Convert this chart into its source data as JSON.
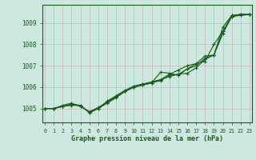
{
  "title": "Graphe pression niveau de la mer (hPa)",
  "bg_color": "#cce8e0",
  "grid_color": "#c8b8b8",
  "line_color": "#1a5c1a",
  "marker_color": "#1a5c1a",
  "xlim": [
    -0.3,
    23.3
  ],
  "ylim": [
    1004.35,
    1009.85
  ],
  "yticks": [
    1005,
    1006,
    1007,
    1008,
    1009
  ],
  "xticks": [
    0,
    1,
    2,
    3,
    4,
    5,
    6,
    7,
    8,
    9,
    10,
    11,
    12,
    13,
    14,
    15,
    16,
    17,
    18,
    19,
    20,
    21,
    22,
    23
  ],
  "series": [
    [
      1005.0,
      1005.0,
      1005.1,
      1005.15,
      1005.15,
      1004.8,
      1005.0,
      1005.35,
      1005.6,
      1005.85,
      1006.05,
      1006.15,
      1006.25,
      1006.35,
      1006.5,
      1006.6,
      1006.65,
      1006.9,
      1007.3,
      1007.5,
      1008.5,
      1009.3,
      1009.4,
      1009.4
    ],
    [
      1005.0,
      1005.0,
      1005.1,
      1005.2,
      1005.15,
      1004.8,
      1005.0,
      1005.3,
      1005.55,
      1005.8,
      1006.0,
      1006.1,
      1006.2,
      1006.3,
      1006.55,
      1006.6,
      1006.85,
      1007.0,
      1007.35,
      1007.5,
      1008.8,
      1009.35,
      1009.4,
      1009.4
    ],
    [
      1005.0,
      1005.0,
      1005.1,
      1005.2,
      1005.1,
      1004.85,
      1005.0,
      1005.25,
      1005.5,
      1005.8,
      1006.0,
      1006.1,
      1006.2,
      1006.7,
      1006.65,
      1006.55,
      1006.85,
      1007.1,
      1007.45,
      1007.5,
      1008.6,
      1009.3,
      1009.35,
      1009.4
    ],
    [
      1005.0,
      1005.0,
      1005.15,
      1005.25,
      1005.1,
      1004.85,
      1005.05,
      1005.3,
      1005.55,
      1005.8,
      1006.0,
      1006.1,
      1006.2,
      1006.35,
      1006.6,
      1006.8,
      1007.0,
      1007.1,
      1007.2,
      1008.0,
      1008.6,
      1009.35,
      1009.4,
      1009.4
    ]
  ]
}
